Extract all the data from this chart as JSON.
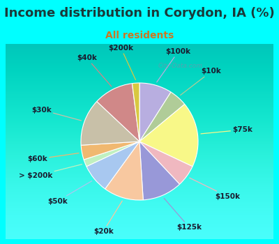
{
  "title": "Income distribution in Corydon, IA (%)",
  "subtitle": "All residents",
  "title_color": "#1a3a3a",
  "subtitle_color": "#cc7722",
  "background_color": "#00ffff",
  "chart_bg_color": "#e0f0e8",
  "watermark": "City-Data.com",
  "slices": [
    {
      "label": "$100k",
      "value": 9,
      "color": "#b8aee0"
    },
    {
      "label": "$10k",
      "value": 5,
      "color": "#b0cc98"
    },
    {
      "label": "$75k",
      "value": 18,
      "color": "#f8f888"
    },
    {
      "label": "$150k",
      "value": 6,
      "color": "#f0b8c0"
    },
    {
      "label": "$125k",
      "value": 11,
      "color": "#9898d8"
    },
    {
      "label": "$20k",
      "value": 11,
      "color": "#f8c8a0"
    },
    {
      "label": "$50k",
      "value": 8,
      "color": "#a8c8f0"
    },
    {
      "label": "> $200k",
      "value": 2,
      "color": "#c0f0c0"
    },
    {
      "label": "$60k",
      "value": 4,
      "color": "#f0b870"
    },
    {
      "label": "$30k",
      "value": 13,
      "color": "#c8c0a8"
    },
    {
      "label": "$40k",
      "value": 11,
      "color": "#d08888"
    },
    {
      "label": "$200k",
      "value": 2,
      "color": "#d8c840"
    }
  ],
  "label_fontsize": 7.5,
  "title_fontsize": 13,
  "subtitle_fontsize": 10
}
